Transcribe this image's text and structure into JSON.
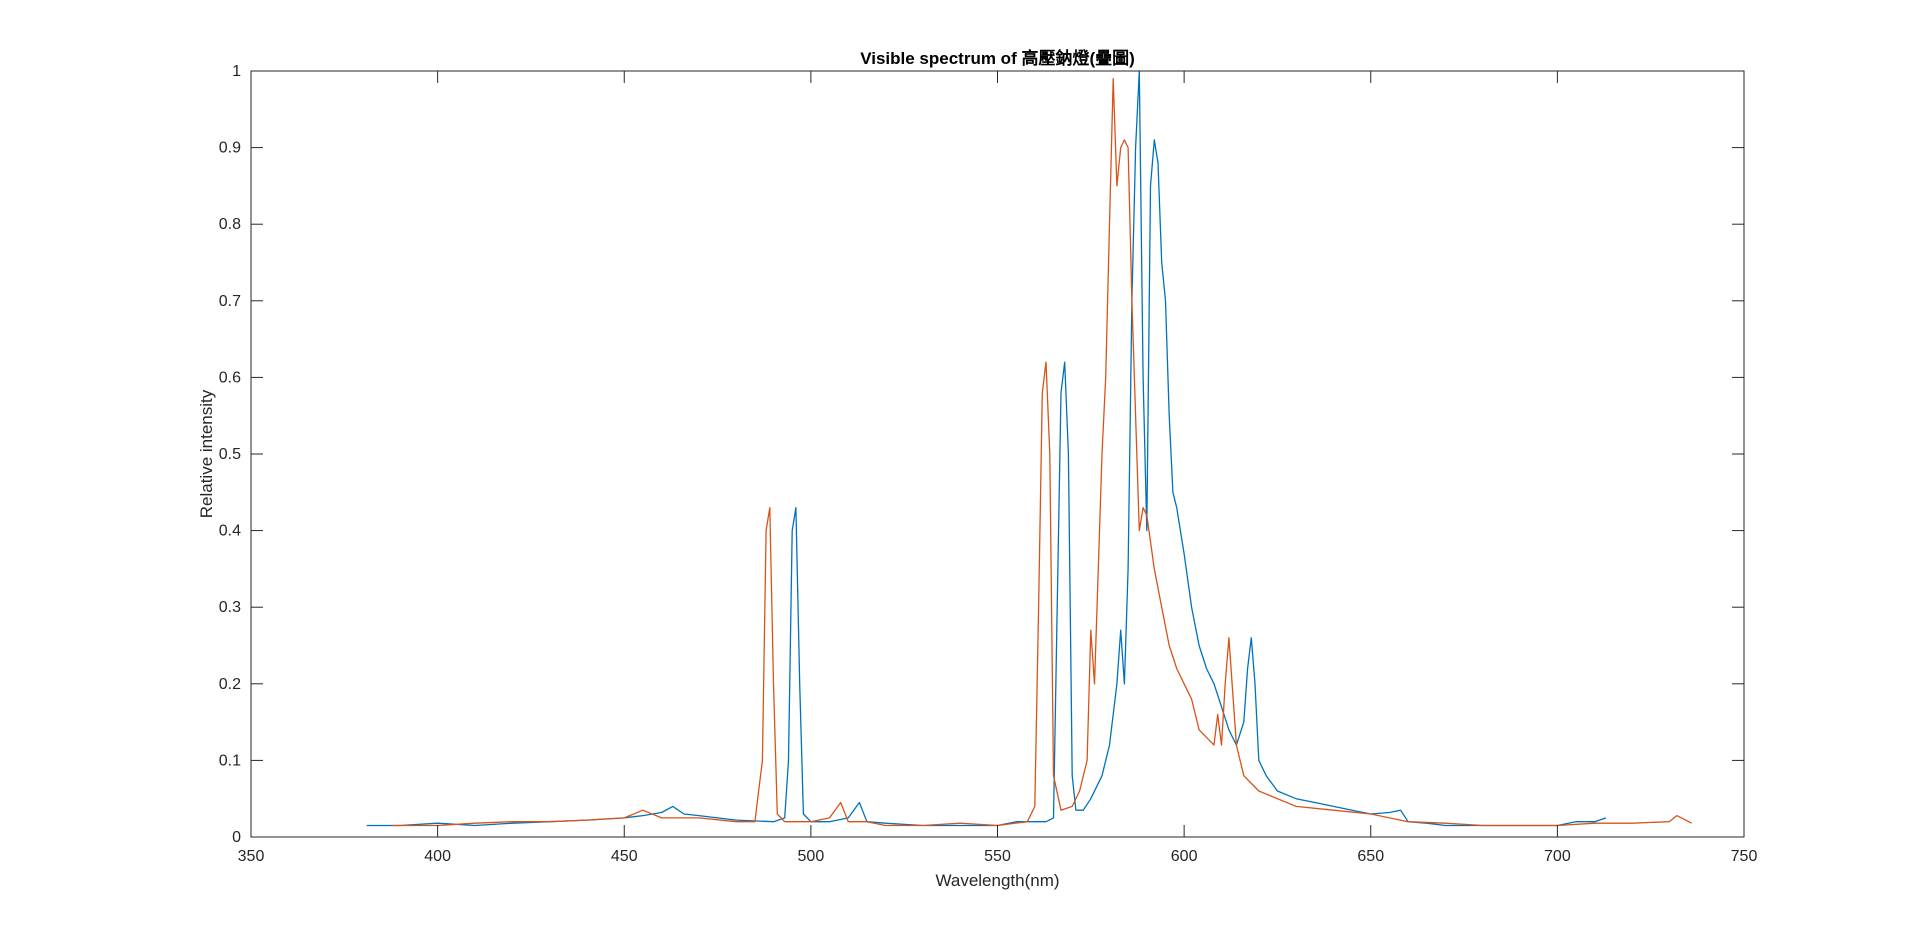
{
  "chart_data": {
    "type": "line",
    "title": "Visible spectrum of 高壓鈉燈(疊圖)",
    "xlabel": "Wavelength(nm)",
    "ylabel": "Relative intensity",
    "xlim": [
      350,
      750
    ],
    "ylim": [
      0,
      1
    ],
    "xticks": [
      "350",
      "400",
      "450",
      "500",
      "550",
      "600",
      "650",
      "700",
      "750"
    ],
    "yticks": [
      "0",
      "0.1",
      "0.2",
      "0.3",
      "0.4",
      "0.5",
      "0.6",
      "0.7",
      "0.8",
      "0.9",
      "1"
    ],
    "grid": false,
    "box": true,
    "colors": {
      "series_blue": "#0072BD",
      "series_orange": "#D95319",
      "axes": "#262626"
    },
    "series": [
      {
        "color": "#0072BD",
        "x": [
          381,
          390,
          400,
          410,
          420,
          430,
          440,
          450,
          455,
          460,
          463,
          466,
          470,
          480,
          490,
          493,
          494,
          495,
          496,
          497,
          498,
          500,
          505,
          510,
          513,
          515,
          520,
          530,
          540,
          550,
          555,
          560,
          563,
          565,
          566,
          567,
          568,
          569,
          570,
          571,
          573,
          575,
          578,
          580,
          582,
          583,
          584,
          585,
          586,
          587,
          588,
          589,
          590,
          591,
          592,
          593,
          594,
          595,
          596,
          597,
          598,
          600,
          602,
          604,
          606,
          608,
          610,
          612,
          614,
          616,
          617,
          618,
          619,
          620,
          622,
          625,
          630,
          635,
          640,
          645,
          650,
          655,
          658,
          660,
          665,
          670,
          680,
          690,
          700,
          705,
          710,
          713
        ],
        "y": [
          0.015,
          0.015,
          0.018,
          0.015,
          0.018,
          0.02,
          0.022,
          0.025,
          0.028,
          0.032,
          0.04,
          0.03,
          0.028,
          0.022,
          0.02,
          0.025,
          0.1,
          0.4,
          0.43,
          0.2,
          0.03,
          0.02,
          0.02,
          0.025,
          0.045,
          0.02,
          0.018,
          0.015,
          0.015,
          0.015,
          0.02,
          0.02,
          0.02,
          0.025,
          0.3,
          0.58,
          0.62,
          0.5,
          0.08,
          0.035,
          0.035,
          0.05,
          0.08,
          0.12,
          0.2,
          0.27,
          0.2,
          0.35,
          0.7,
          0.9,
          1.0,
          0.6,
          0.4,
          0.85,
          0.91,
          0.88,
          0.75,
          0.7,
          0.55,
          0.45,
          0.43,
          0.37,
          0.3,
          0.25,
          0.22,
          0.2,
          0.17,
          0.14,
          0.12,
          0.15,
          0.22,
          0.26,
          0.2,
          0.1,
          0.08,
          0.06,
          0.05,
          0.045,
          0.04,
          0.035,
          0.03,
          0.032,
          0.035,
          0.02,
          0.018,
          0.015,
          0.015,
          0.015,
          0.015,
          0.02,
          0.02,
          0.025
        ]
      },
      {
        "color": "#D95319",
        "x": [
          388,
          400,
          410,
          420,
          430,
          440,
          450,
          455,
          460,
          470,
          480,
          485,
          487,
          488,
          489,
          490,
          491,
          493,
          500,
          505,
          508,
          510,
          515,
          520,
          530,
          540,
          550,
          558,
          560,
          561,
          562,
          563,
          564,
          565,
          567,
          570,
          572,
          574,
          575,
          576,
          577,
          578,
          579,
          580,
          581,
          582,
          583,
          584,
          585,
          586,
          587,
          588,
          589,
          590,
          592,
          594,
          596,
          598,
          600,
          602,
          604,
          606,
          608,
          609,
          610,
          611,
          612,
          614,
          616,
          620,
          625,
          630,
          640,
          650,
          660,
          670,
          680,
          690,
          700,
          710,
          720,
          730,
          732,
          736
        ],
        "y": [
          0.015,
          0.015,
          0.018,
          0.02,
          0.02,
          0.022,
          0.025,
          0.035,
          0.025,
          0.025,
          0.02,
          0.02,
          0.1,
          0.4,
          0.43,
          0.2,
          0.03,
          0.02,
          0.02,
          0.025,
          0.045,
          0.02,
          0.02,
          0.015,
          0.015,
          0.018,
          0.015,
          0.02,
          0.04,
          0.3,
          0.58,
          0.62,
          0.5,
          0.08,
          0.035,
          0.04,
          0.06,
          0.1,
          0.27,
          0.2,
          0.35,
          0.5,
          0.6,
          0.8,
          0.99,
          0.85,
          0.9,
          0.91,
          0.9,
          0.7,
          0.55,
          0.4,
          0.43,
          0.42,
          0.35,
          0.3,
          0.25,
          0.22,
          0.2,
          0.18,
          0.14,
          0.13,
          0.12,
          0.16,
          0.12,
          0.2,
          0.26,
          0.12,
          0.08,
          0.06,
          0.05,
          0.04,
          0.035,
          0.03,
          0.02,
          0.018,
          0.015,
          0.015,
          0.015,
          0.018,
          0.018,
          0.02,
          0.028,
          0.018
        ]
      }
    ]
  }
}
